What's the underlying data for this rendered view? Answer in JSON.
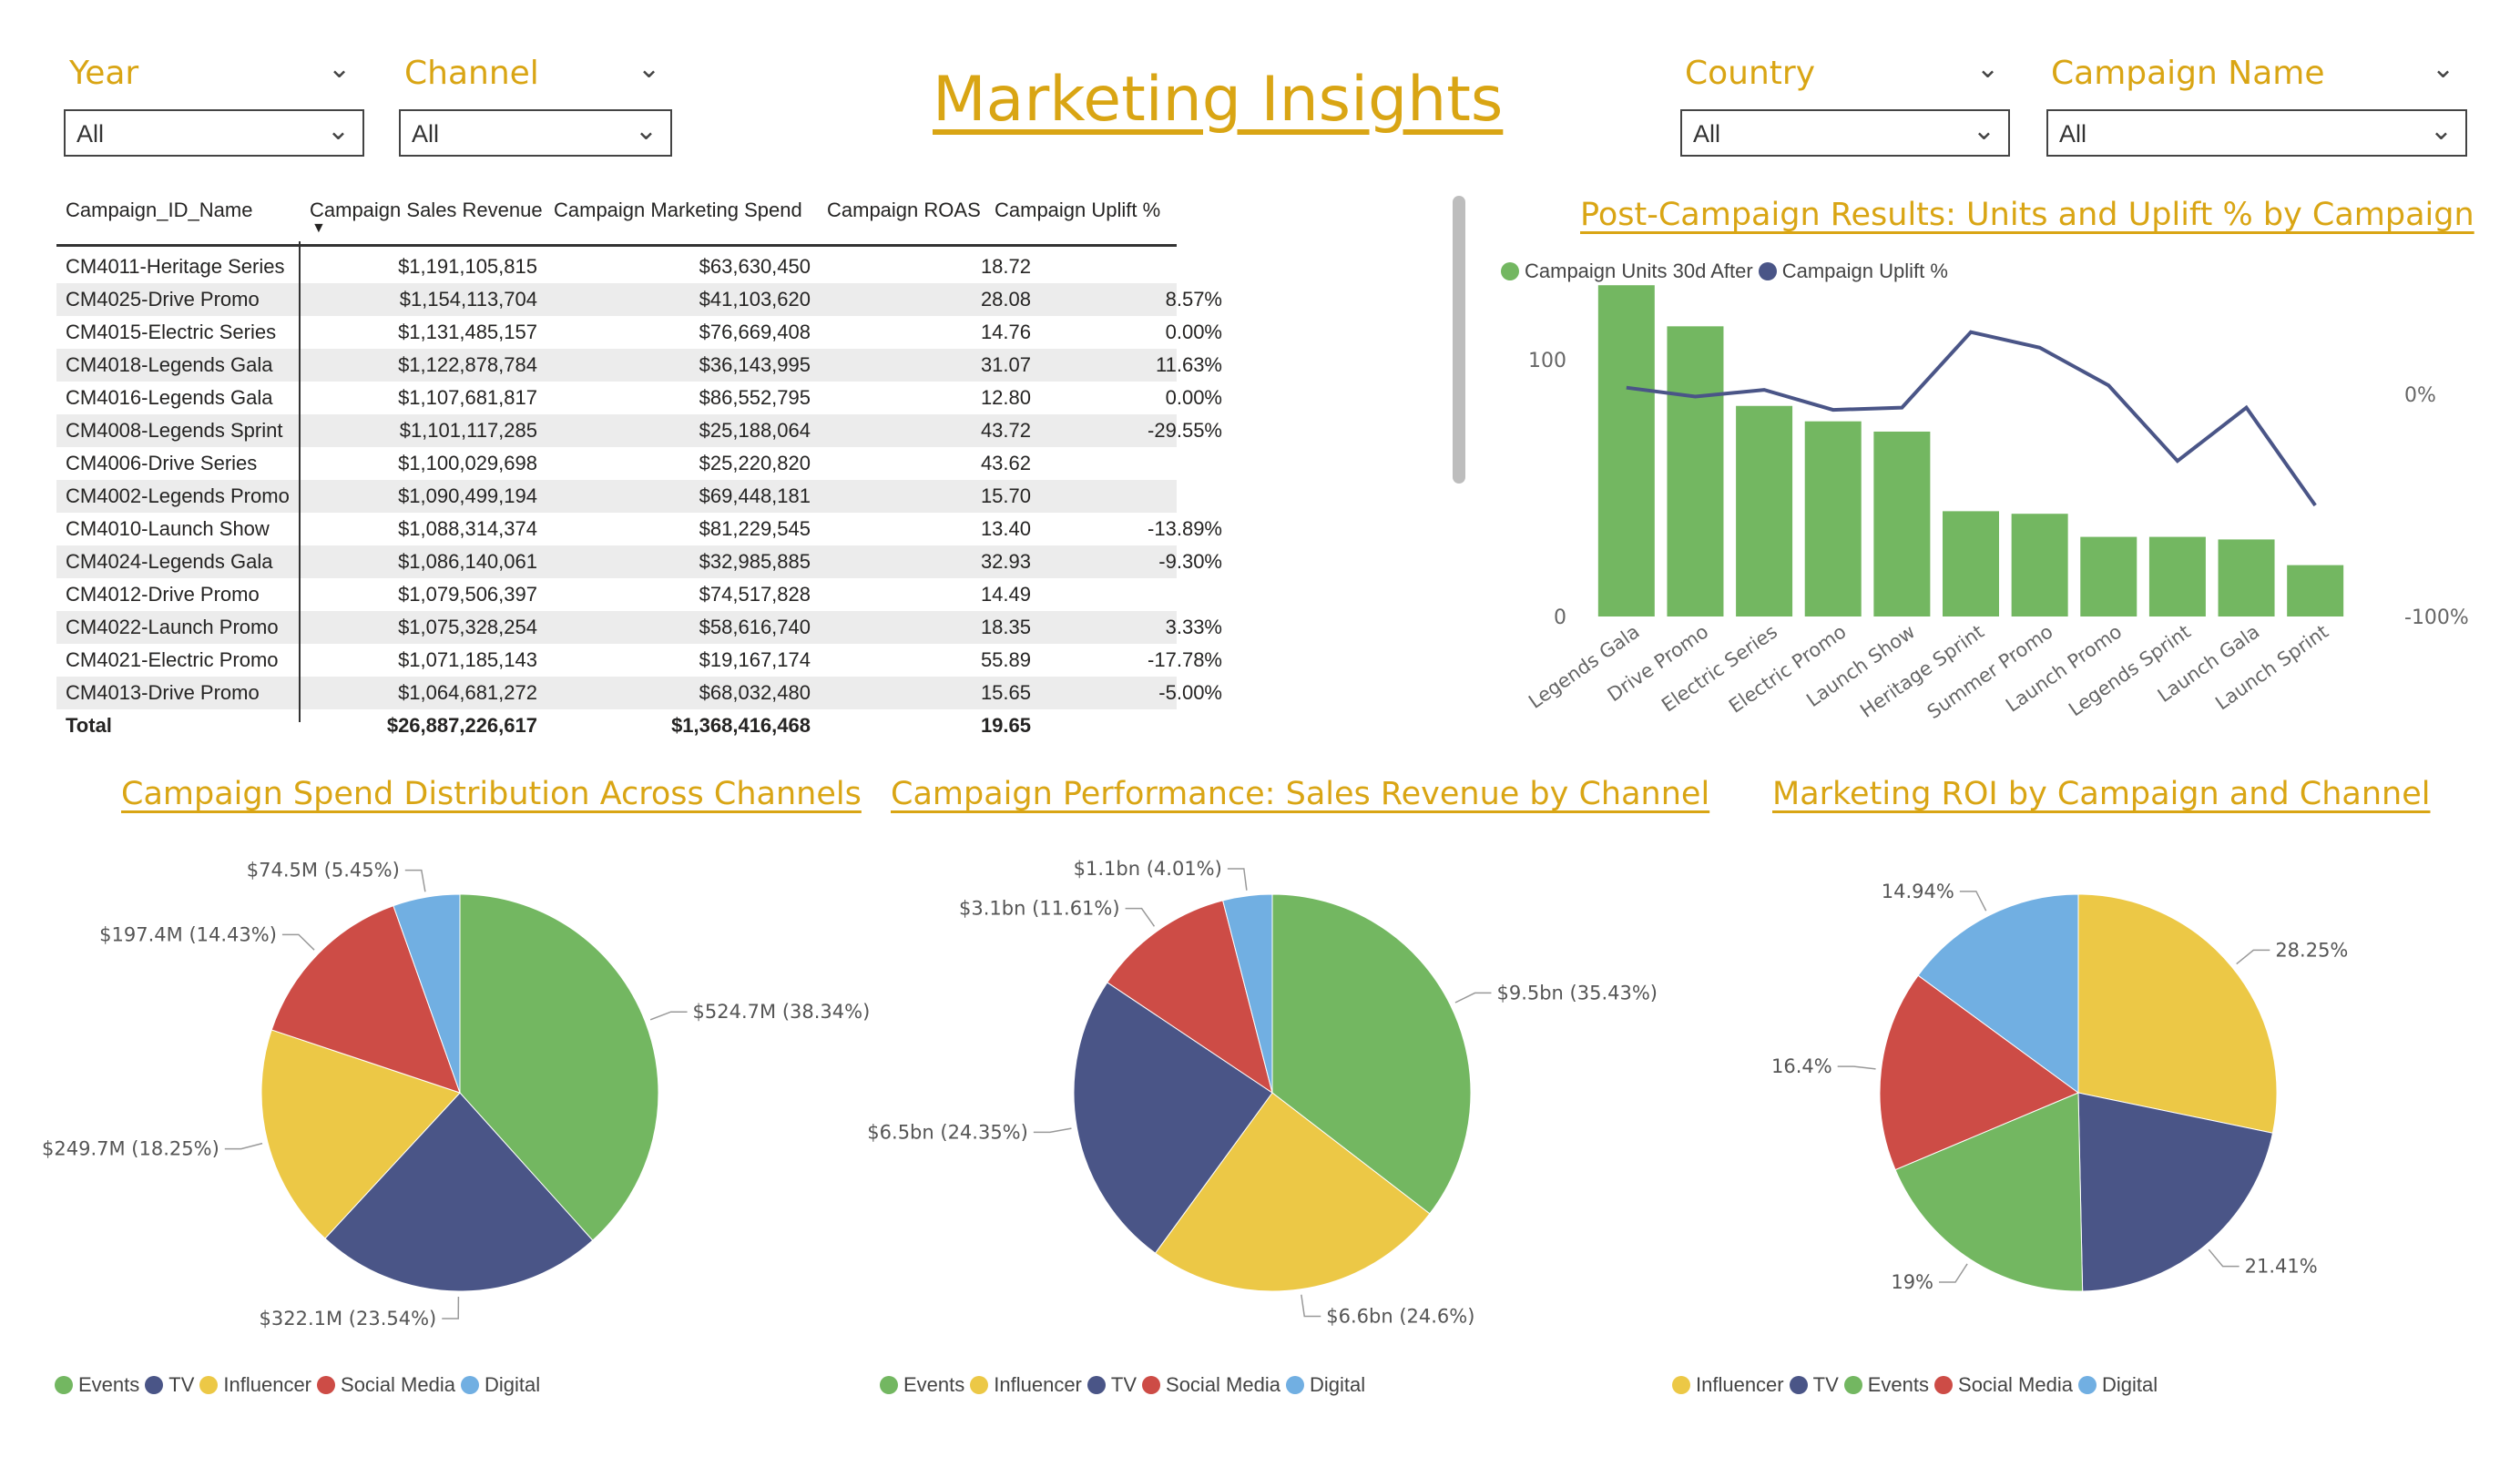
{
  "page_title": "Marketing Insights",
  "slicers": {
    "year": {
      "label": "Year",
      "value": "All"
    },
    "channel": {
      "label": "Channel",
      "value": "All"
    },
    "country": {
      "label": "Country",
      "value": "All"
    },
    "campaign_name": {
      "label": "Campaign Name",
      "value": "All"
    }
  },
  "table": {
    "headers": [
      "Campaign_ID_Name",
      "Campaign Sales Revenue",
      "Campaign Marketing Spend",
      "Campaign ROAS",
      "Campaign Uplift %"
    ],
    "rows": [
      [
        "CM4011-Heritage Series",
        "$1,191,105,815",
        "$63,630,450",
        "18.72",
        ""
      ],
      [
        "CM4025-Drive Promo",
        "$1,154,113,704",
        "$41,103,620",
        "28.08",
        "8.57%"
      ],
      [
        "CM4015-Electric Series",
        "$1,131,485,157",
        "$76,669,408",
        "14.76",
        "0.00%"
      ],
      [
        "CM4018-Legends Gala",
        "$1,122,878,784",
        "$36,143,995",
        "31.07",
        "11.63%"
      ],
      [
        "CM4016-Legends Gala",
        "$1,107,681,817",
        "$86,552,795",
        "12.80",
        "0.00%"
      ],
      [
        "CM4008-Legends Sprint",
        "$1,101,117,285",
        "$25,188,064",
        "43.72",
        "-29.55%"
      ],
      [
        "CM4006-Drive Series",
        "$1,100,029,698",
        "$25,220,820",
        "43.62",
        ""
      ],
      [
        "CM4002-Legends Promo",
        "$1,090,499,194",
        "$69,448,181",
        "15.70",
        ""
      ],
      [
        "CM4010-Launch Show",
        "$1,088,314,374",
        "$81,229,545",
        "13.40",
        "-13.89%"
      ],
      [
        "CM4024-Legends Gala",
        "$1,086,140,061",
        "$32,985,885",
        "32.93",
        "-9.30%"
      ],
      [
        "CM4012-Drive Promo",
        "$1,079,506,397",
        "$74,517,828",
        "14.49",
        ""
      ],
      [
        "CM4022-Launch Promo",
        "$1,075,328,254",
        "$58,616,740",
        "18.35",
        "3.33%"
      ],
      [
        "CM4021-Electric Promo",
        "$1,071,185,143",
        "$19,167,174",
        "55.89",
        "-17.78%"
      ],
      [
        "CM4013-Drive Promo",
        "$1,064,681,272",
        "$68,032,480",
        "15.65",
        "-5.00%"
      ]
    ],
    "total": [
      "Total",
      "$26,887,226,617",
      "$1,368,416,468",
      "19.65",
      ""
    ]
  },
  "colors": {
    "green": "#73B761",
    "navy": "#4A5587",
    "yellow": "#ECC846",
    "red": "#CD4C46",
    "blue": "#71AFE2",
    "gold": "#D9A514"
  },
  "chart_data": [
    {
      "type": "bar",
      "title": "Post-Campaign Results: Units and Uplift % by Campaign",
      "categories": [
        "Legends Gala",
        "Drive Promo",
        "Electric Series",
        "Electric Promo",
        "Launch Show",
        "Heritage Sprint",
        "Summer Promo",
        "Launch Promo",
        "Legends Sprint",
        "Launch Gala",
        "Launch Sprint"
      ],
      "series": [
        {
          "name": "Campaign Units 30d After",
          "type": "bar",
          "axis": "left",
          "values": [
            129,
            113,
            82,
            76,
            72,
            41,
            40,
            31,
            31,
            30,
            20
          ]
        },
        {
          "name": "Campaign Uplift %",
          "type": "line",
          "axis": "right",
          "values": [
            3,
            -1,
            2,
            -7,
            -6,
            28,
            21,
            4,
            -30,
            -6,
            -50
          ]
        }
      ],
      "y_left": {
        "ticks": [
          "0",
          "100"
        ],
        "ylim": [
          0,
          150
        ]
      },
      "y_right": {
        "ticks": [
          "-100%",
          "0%"
        ],
        "ylim": [
          -100,
          40
        ]
      },
      "legend": "top-left",
      "grid": false
    },
    {
      "type": "pie",
      "title": "Campaign Spend Distribution Across Channels",
      "slices": [
        {
          "name": "Events",
          "value": 524.7,
          "label": "$524.7M (38.34%)"
        },
        {
          "name": "TV",
          "value": 322.1,
          "label": "$322.1M (23.54%)"
        },
        {
          "name": "Influencer",
          "value": 249.7,
          "label": "$249.7M (18.25%)"
        },
        {
          "name": "Social Media",
          "value": 197.4,
          "label": "$197.4M (14.43%)"
        },
        {
          "name": "Digital",
          "value": 74.5,
          "label": "$74.5M (5.45%)"
        }
      ],
      "legend": [
        "Events",
        "TV",
        "Influencer",
        "Social Media",
        "Digital"
      ]
    },
    {
      "type": "pie",
      "title": "Campaign Performance: Sales Revenue by Channel",
      "slices": [
        {
          "name": "Events",
          "value": 35.43,
          "label": "$9.5bn (35.43%)"
        },
        {
          "name": "Influencer",
          "value": 24.6,
          "label": "$6.6bn (24.6%)"
        },
        {
          "name": "TV",
          "value": 24.35,
          "label": "$6.5bn (24.35%)"
        },
        {
          "name": "Social Media",
          "value": 11.61,
          "label": "$3.1bn (11.61%)"
        },
        {
          "name": "Digital",
          "value": 4.01,
          "label": "$1.1bn (4.01%)"
        }
      ],
      "legend": [
        "Events",
        "Influencer",
        "TV",
        "Social Media",
        "Digital"
      ]
    },
    {
      "type": "pie",
      "title": "Marketing ROI by Campaign and Channel",
      "slices": [
        {
          "name": "Influencer",
          "value": 28.25,
          "label": "28.25%"
        },
        {
          "name": "TV",
          "value": 21.41,
          "label": "21.41%"
        },
        {
          "name": "Events",
          "value": 19,
          "label": "19%"
        },
        {
          "name": "Social Media",
          "value": 16.4,
          "label": "16.4%"
        },
        {
          "name": "Digital",
          "value": 14.94,
          "label": "14.94%"
        }
      ],
      "legend": [
        "Influencer",
        "TV",
        "Events",
        "Social Media",
        "Digital"
      ]
    }
  ]
}
